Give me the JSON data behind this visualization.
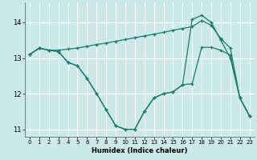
{
  "xlabel": "Humidex (Indice chaleur)",
  "bg_color": "#cce8e8",
  "grid_color": "#b0d0d0",
  "line_color": "#1a7a6e",
  "xlim": [
    -0.5,
    23.5
  ],
  "ylim": [
    10.8,
    14.55
  ],
  "xticks": [
    0,
    1,
    2,
    3,
    4,
    5,
    6,
    7,
    8,
    9,
    10,
    11,
    12,
    13,
    14,
    15,
    16,
    17,
    18,
    19,
    20,
    21,
    22,
    23
  ],
  "yticks": [
    11,
    12,
    13,
    14
  ],
  "line1_x": [
    0,
    1,
    2,
    3,
    4,
    5,
    6,
    7,
    8,
    9,
    10,
    11,
    12,
    13,
    14,
    15,
    16,
    17,
    18,
    19,
    20,
    21,
    22,
    23
  ],
  "line1_y": [
    13.1,
    13.28,
    13.22,
    13.22,
    13.25,
    13.28,
    13.33,
    13.38,
    13.42,
    13.47,
    13.52,
    13.57,
    13.62,
    13.67,
    13.72,
    13.78,
    13.83,
    13.88,
    14.05,
    13.92,
    13.55,
    13.28,
    11.88,
    11.38
  ],
  "line2_x": [
    0,
    1,
    2,
    3,
    4,
    5,
    6,
    7,
    8,
    9,
    10,
    11,
    12,
    13,
    14,
    15,
    16,
    17,
    18,
    19,
    20,
    21,
    22,
    23
  ],
  "line2_y": [
    13.1,
    13.28,
    13.22,
    13.18,
    12.88,
    12.78,
    12.43,
    12.0,
    11.55,
    11.1,
    11.0,
    11.0,
    11.5,
    11.88,
    12.0,
    12.05,
    12.25,
    14.08,
    14.2,
    14.0,
    13.5,
    13.0,
    11.88,
    11.38
  ],
  "line3_x": [
    0,
    1,
    2,
    3,
    4,
    5,
    6,
    7,
    8,
    9,
    10,
    11,
    12,
    13,
    14,
    15,
    16,
    17,
    18,
    19,
    20,
    21,
    22,
    23
  ],
  "line3_y": [
    13.1,
    13.28,
    13.22,
    13.18,
    12.88,
    12.78,
    12.43,
    12.0,
    11.55,
    11.1,
    11.0,
    11.0,
    11.5,
    11.88,
    12.0,
    12.05,
    12.25,
    12.28,
    13.3,
    13.3,
    13.22,
    13.08,
    11.88,
    11.38
  ]
}
